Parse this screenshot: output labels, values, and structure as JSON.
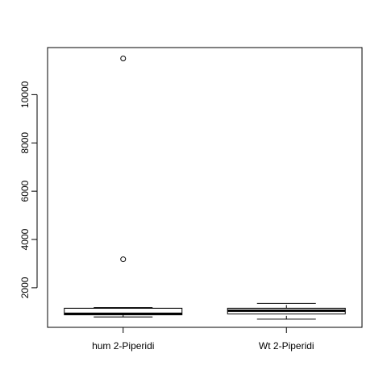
{
  "chart_data": {
    "type": "boxplot",
    "categories": [
      "hum 2-Piperidi",
      "Wt 2-Piperidi"
    ],
    "boxes": [
      {
        "name": "hum 2-Piperidi",
        "whisker_low": 790,
        "q1": 880,
        "median": 920,
        "q3": 1150,
        "whisker_high": 1180,
        "outliers": [
          3180,
          11500
        ]
      },
      {
        "name": "Wt 2-Piperidi",
        "whisker_low": 700,
        "q1": 920,
        "median": 1050,
        "q3": 1150,
        "whisker_high": 1350,
        "outliers": []
      }
    ],
    "yticks": [
      "2000",
      "4000",
      "6000",
      "8000",
      "10000"
    ],
    "ylim": [
      360,
      11950
    ],
    "title": "",
    "xlabel": "",
    "ylabel": "",
    "grid": false,
    "legend": false
  }
}
